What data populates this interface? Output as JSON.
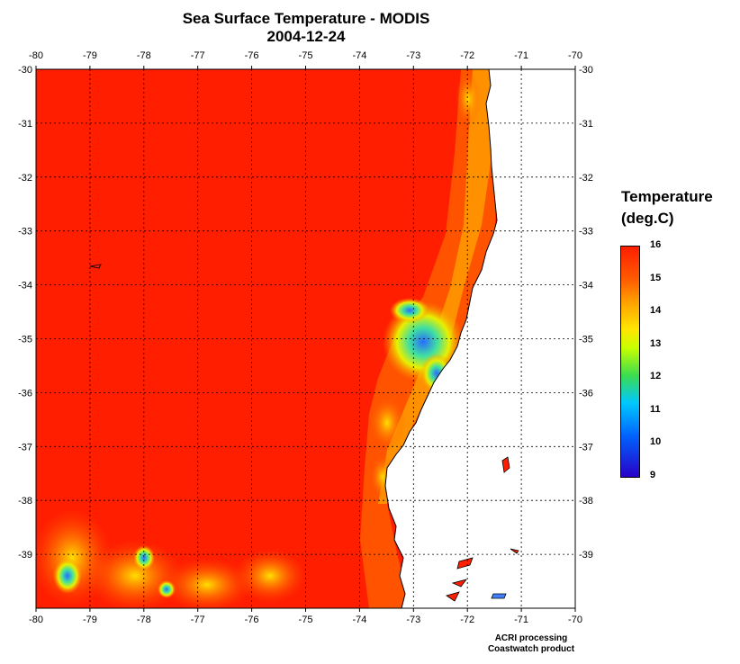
{
  "title": {
    "line1": "Sea Surface Temperature - MODIS",
    "line2": "2004-12-24"
  },
  "map": {
    "lon_range": [
      -80,
      -70
    ],
    "lat_range": [
      -40,
      -30
    ],
    "lon_ticks": [
      "-80",
      "-79",
      "-78",
      "-77",
      "-76",
      "-75",
      "-74",
      "-73",
      "-72",
      "-71",
      "-70"
    ],
    "lat_ticks": [
      "-30",
      "-31",
      "-32",
      "-33",
      "-34",
      "-35",
      "-36",
      "-37",
      "-38",
      "-39"
    ],
    "grid": "dotted",
    "ocean_color": "#ff1e00",
    "land_color": "#ffffff"
  },
  "legend": {
    "title_line1": "Temperature",
    "title_line2": "(deg.C)",
    "labels": [
      "16",
      "15",
      "14",
      "13",
      "12",
      "11",
      "10",
      "9"
    ],
    "min": 9,
    "max": 16
  },
  "credit": {
    "line1": "ACRI processing",
    "line2": "Coastwatch product"
  }
}
